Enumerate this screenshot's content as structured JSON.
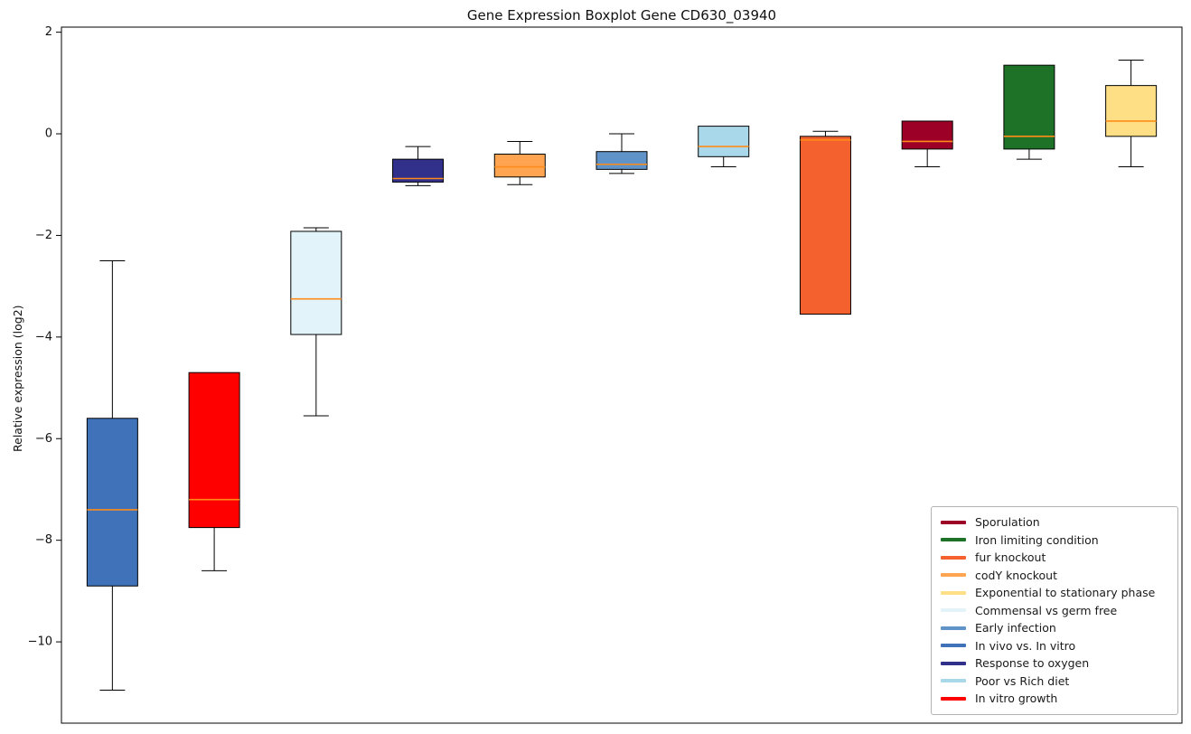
{
  "chart_data": {
    "type": "boxplot",
    "title": "Gene Expression Boxplot Gene CD630_03940",
    "xlabel": "",
    "ylabel": "Relative expression (log2)",
    "ylim": [
      -11.6,
      2.1
    ],
    "yticks": [
      2,
      0,
      -2,
      -4,
      -6,
      -8,
      -10
    ],
    "ytick_labels": [
      "2",
      "0",
      "−2",
      "−4",
      "−6",
      "−8",
      "−10"
    ],
    "grid": false,
    "box_edge_color": "#000000",
    "whisker_color": "#000000",
    "median_color": "#ff8c1a",
    "series": [
      {
        "name": "In vivo vs. In vitro",
        "color": "#3f72b8",
        "whisker_low": -10.95,
        "q1": -8.9,
        "median": -7.4,
        "q3": -5.6,
        "whisker_high": -2.5
      },
      {
        "name": "In vitro growth",
        "color": "#fe0000",
        "whisker_low": -8.6,
        "q1": -7.75,
        "median": -7.2,
        "q3": -4.7,
        "whisker_high": -4.7
      },
      {
        "name": "Commensal vs germ free",
        "color": "#e2f3f9",
        "whisker_low": -5.55,
        "q1": -3.95,
        "median": -3.25,
        "q3": -1.92,
        "whisker_high": -1.85
      },
      {
        "name": "Response to oxygen",
        "color": "#31318c",
        "whisker_low": -1.02,
        "q1": -0.95,
        "median": -0.88,
        "q3": -0.5,
        "whisker_high": -0.25
      },
      {
        "name": "codY knockout",
        "color": "#ffa552",
        "whisker_low": -1.0,
        "q1": -0.85,
        "median": -0.65,
        "q3": -0.4,
        "whisker_high": -0.15
      },
      {
        "name": "Early infection",
        "color": "#6093c8",
        "whisker_low": -0.78,
        "q1": -0.7,
        "median": -0.6,
        "q3": -0.35,
        "whisker_high": 0.0
      },
      {
        "name": "Poor vs Rich diet",
        "color": "#a8d8ea",
        "whisker_low": -0.65,
        "q1": -0.45,
        "median": -0.25,
        "q3": 0.15,
        "whisker_high": 0.15
      },
      {
        "name": "fur knockout",
        "color": "#f4612e",
        "whisker_low": -3.55,
        "q1": -3.55,
        "median": -0.12,
        "q3": -0.05,
        "whisker_high": 0.05
      },
      {
        "name": "Sporulation",
        "color": "#9d0026",
        "whisker_low": -0.65,
        "q1": -0.3,
        "median": -0.15,
        "q3": 0.25,
        "whisker_high": 0.25
      },
      {
        "name": "Iron limiting condition",
        "color": "#1e7227",
        "whisker_low": -0.5,
        "q1": -0.3,
        "median": -0.05,
        "q3": 1.35,
        "whisker_high": 1.35
      },
      {
        "name": "Exponential to stationary phase",
        "color": "#ffdf86",
        "whisker_low": -0.65,
        "q1": -0.05,
        "median": 0.25,
        "q3": 0.95,
        "whisker_high": 1.45
      }
    ],
    "legend": {
      "position": "lower right",
      "entries": [
        {
          "label": "Sporulation",
          "color": "#9d0026"
        },
        {
          "label": "Iron limiting condition",
          "color": "#1e7227"
        },
        {
          "label": "fur knockout",
          "color": "#f4612e"
        },
        {
          "label": "codY knockout",
          "color": "#ffa552"
        },
        {
          "label": "Exponential to stationary phase",
          "color": "#ffdf86"
        },
        {
          "label": "Commensal vs germ free",
          "color": "#e2f3f9"
        },
        {
          "label": "Early infection",
          "color": "#6093c8"
        },
        {
          "label": "In vivo vs. In vitro",
          "color": "#3f72b8"
        },
        {
          "label": "Response to oxygen",
          "color": "#31318c"
        },
        {
          "label": "Poor vs Rich diet",
          "color": "#a8d8ea"
        },
        {
          "label": "In vitro growth",
          "color": "#fe0000"
        }
      ]
    }
  }
}
